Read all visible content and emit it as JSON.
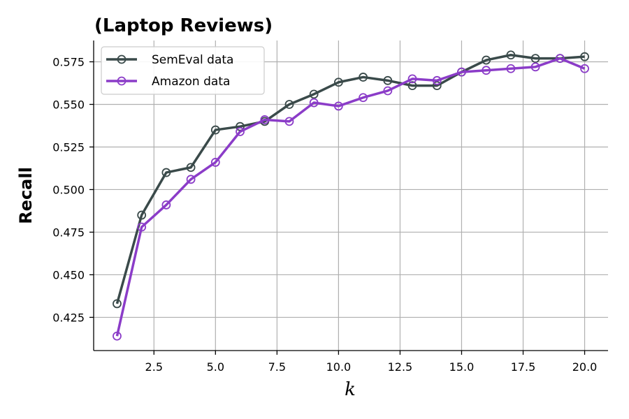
{
  "chart_data": {
    "type": "line",
    "title": "(Laptop Reviews)",
    "xlabel": "k",
    "ylabel": "Recall",
    "xlim": [
      0.05,
      20.95
    ],
    "ylim": [
      0.4055,
      0.5875
    ],
    "xticks": [
      2.5,
      5.0,
      7.5,
      10.0,
      12.5,
      15.0,
      17.5,
      20.0
    ],
    "xtick_labels": [
      "2.5",
      "5.0",
      "7.5",
      "10.0",
      "12.5",
      "15.0",
      "17.5",
      "20.0"
    ],
    "yticks": [
      0.425,
      0.45,
      0.475,
      0.5,
      0.525,
      0.55,
      0.575
    ],
    "ytick_labels": [
      "0.425",
      "0.450",
      "0.475",
      "0.500",
      "0.525",
      "0.550",
      "0.575"
    ],
    "grid": true,
    "legend_position": "top-left",
    "x": [
      1,
      2,
      3,
      4,
      5,
      6,
      7,
      8,
      9,
      10,
      11,
      12,
      13,
      14,
      15,
      16,
      17,
      18,
      19,
      20
    ],
    "series": [
      {
        "name": "SemEval data",
        "color": "#3a4a4a",
        "marker": "hollow-circle",
        "values": [
          0.433,
          0.485,
          0.51,
          0.513,
          0.535,
          0.537,
          0.54,
          0.55,
          0.556,
          0.563,
          0.566,
          0.564,
          0.561,
          0.561,
          0.569,
          0.576,
          0.579,
          0.577,
          0.577,
          0.578
        ]
      },
      {
        "name": "Amazon data",
        "color": "#8b3cc8",
        "marker": "hollow-circle",
        "values": [
          0.414,
          0.478,
          0.491,
          0.506,
          0.516,
          0.534,
          0.541,
          0.54,
          0.551,
          0.549,
          0.554,
          0.558,
          0.565,
          0.564,
          0.569,
          0.57,
          0.571,
          0.572,
          0.577,
          0.571
        ]
      }
    ]
  }
}
